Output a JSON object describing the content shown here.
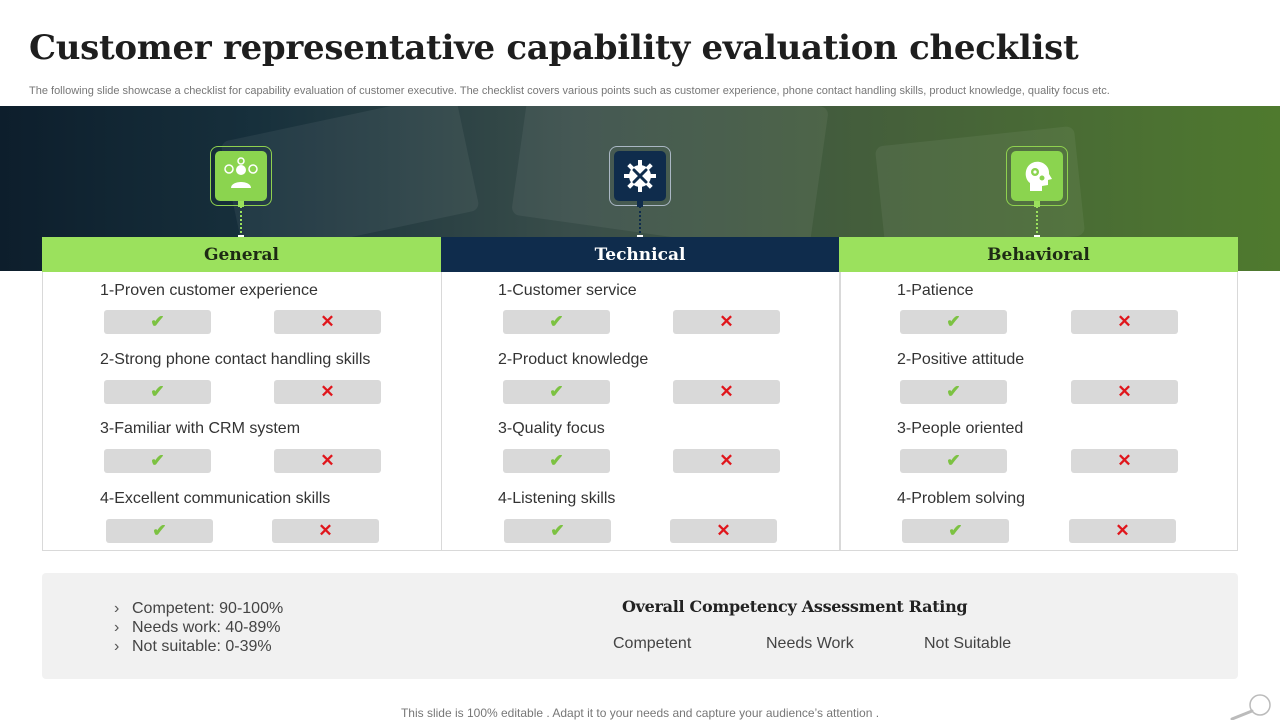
{
  "slide": {
    "title": "Customer representative capability evaluation checklist",
    "subtitle": "The following slide showcase a checklist for capability evaluation of customer executive. The checklist covers various points such as customer experience, phone contact handling skills, product knowledge, quality focus etc."
  },
  "colors": {
    "green": "#9be15d",
    "navy": "#0f2c4c",
    "check": "#7cc242",
    "cross": "#e0161c"
  },
  "symbols": {
    "check": "✔",
    "cross": "✕"
  },
  "columns": [
    {
      "heading": "General",
      "icon": "customer-support-icon",
      "items": [
        "1-Proven customer experience",
        "2-Strong phone contact handling skills",
        "3-Familiar with CRM system",
        "4-Excellent communication skills"
      ]
    },
    {
      "heading": "Technical",
      "icon": "gear-tools-icon",
      "items": [
        "1-Customer service",
        "2-Product knowledge",
        "3-Quality focus",
        "4-Listening skills"
      ]
    },
    {
      "heading": "Behavioral",
      "icon": "head-gear-icon",
      "items": [
        "1-Patience",
        "2-Positive attitude",
        "3-People oriented",
        "4-Problem solving"
      ]
    }
  ],
  "legend": {
    "chevron": "›",
    "items": [
      "Competent: 90-100%",
      "Needs work: 40-89%",
      "Not suitable: 0-39%"
    ]
  },
  "rating": {
    "title": "Overall Competency Assessment Rating",
    "options": [
      "Competent",
      "Needs Work",
      "Not Suitable"
    ]
  },
  "footer": "This slide is 100% editable . Adapt it to your needs and capture your audience’s attention ."
}
